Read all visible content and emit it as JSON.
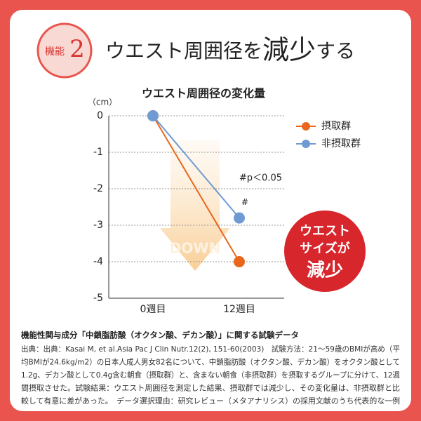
{
  "header": {
    "badge_label": "機能",
    "badge_number": "2",
    "title_pre": "ウエスト周囲径を",
    "title_big": "減少",
    "title_post": "する"
  },
  "chart_data": {
    "type": "line",
    "title": "ウエスト周囲径の変化量",
    "y_unit": "（cm）",
    "categories": [
      "0週目",
      "12週目"
    ],
    "series": [
      {
        "name": "摂取群",
        "color": "#e8671c",
        "values": [
          0,
          -4
        ]
      },
      {
        "name": "非摂取群",
        "color": "#6f9ad3",
        "values": [
          0,
          -2.8
        ]
      }
    ],
    "ylim": [
      -5,
      0
    ],
    "yticks": [
      0,
      -1,
      -2,
      -3,
      -4,
      -5
    ],
    "grid": true,
    "legend": "right",
    "significance_note": "#p＜0.05",
    "significance_mark": "#",
    "arrow_label": "DOWN"
  },
  "callout": {
    "lines": [
      "ウエスト",
      "サイズが"
    ],
    "big": "減少"
  },
  "footnote": {
    "title": "機能性関与成分「中鎖脂肪酸（オクタン酸、デカン酸）」に関する試験データ",
    "lines": [
      "出典：出典：Kasai M, et al.Asia Pac J Clin Nutr.12(2), 151-60(2003)　試験方法：21〜59歳のBMIが高め（平",
      "均BMIが24.6kg/m2）の日本人成人男女82名について、中鎖脂肪酸（オクタン酸、デカン酸）をオクタン酸として",
      "1.2g、デカン酸として0.4g含む朝食（摂取群）と、含まない朝食（非摂取群）を摂取するグループに分けて、12週",
      "間摂取させた。試験結果：ウエスト周囲径を測定した結果、摂取群では減少し、その変化量は、非摂取群と比",
      "較して有意に差があった。　データ選択理由：研究レビュー（メタアナリシス）の採用文献のうち代表的な一例"
    ]
  }
}
